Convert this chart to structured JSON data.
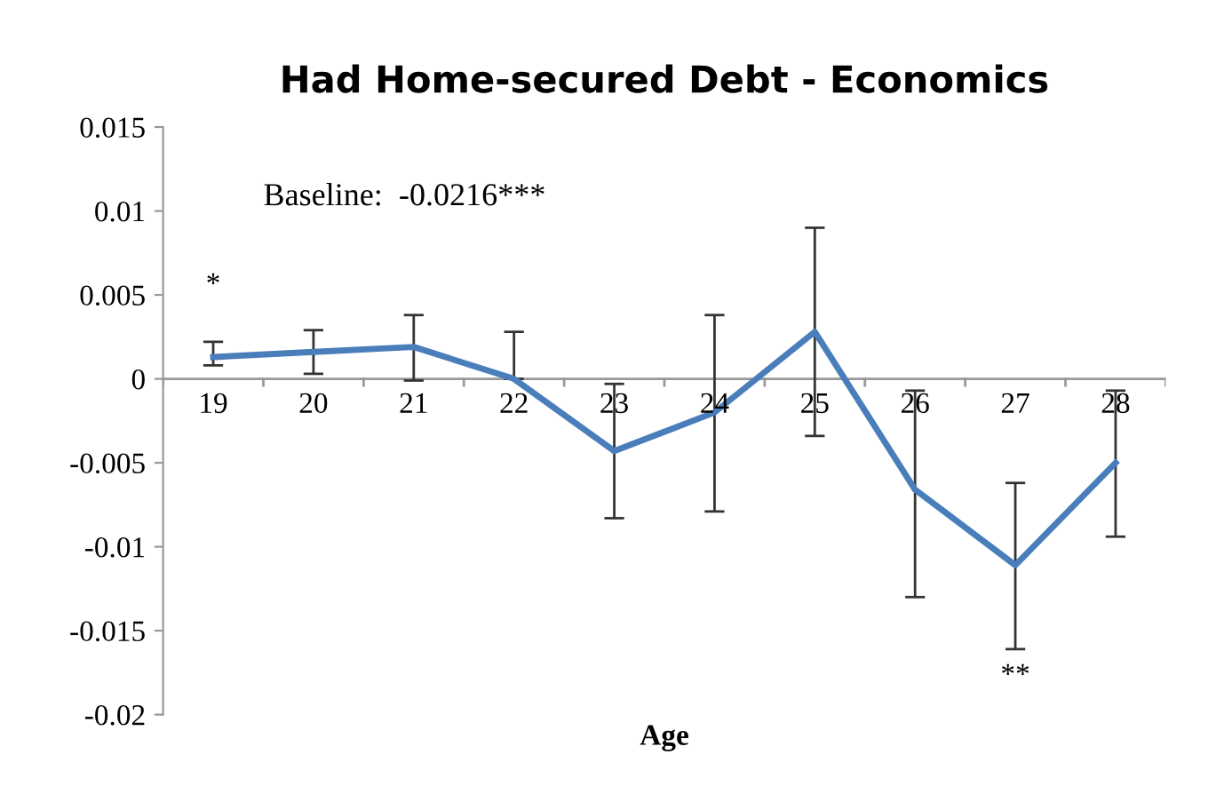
{
  "chart_data": {
    "type": "line",
    "title": "Had Home-secured Debt - Economics",
    "xlabel": "Age",
    "categories": [
      "19",
      "20",
      "21",
      "22",
      "23",
      "24",
      "25",
      "26",
      "27",
      "28"
    ],
    "series": [
      {
        "color": "#4a7ebb",
        "values": [
          0.0013,
          0.0016,
          0.0019,
          0.0,
          -0.0043,
          -0.002,
          0.0028,
          -0.0066,
          -0.0111,
          -0.005
        ],
        "errors": [
          [
            0.0008,
            0.0022
          ],
          [
            0.0003,
            0.0029
          ],
          [
            -0.0001,
            0.0038
          ],
          [
            0.0,
            0.0028
          ],
          [
            -0.0083,
            -0.0003
          ],
          [
            -0.0079,
            0.0038
          ],
          [
            -0.0034,
            0.009
          ],
          [
            -0.013,
            -0.0007
          ],
          [
            -0.0161,
            -0.0062
          ],
          [
            -0.0094,
            -0.0007
          ]
        ]
      }
    ],
    "ylim": [
      -0.02,
      0.015
    ],
    "yticks": [
      -0.02,
      -0.015,
      -0.01,
      -0.005,
      0,
      0.005,
      0.01,
      0.015
    ],
    "annotations": [
      "Baseline:  -0.0216***",
      "*",
      "**"
    ],
    "grid": false,
    "legend": false,
    "marker": "none",
    "line_style": "solid"
  }
}
